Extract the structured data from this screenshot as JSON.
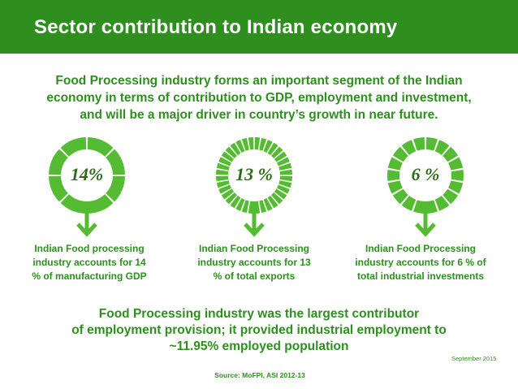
{
  "header": {
    "title": "Sector contribution to Indian economy"
  },
  "intro": {
    "lines": [
      "Food Processing industry forms an important segment of the Indian",
      "economy in terms of contribution to GDP, employment and investment,",
      "and will be a major driver in country’s growth in near future."
    ]
  },
  "stats": [
    {
      "value": "14%",
      "ring_segments": 8,
      "caption_lines": [
        "Indian Food processing",
        "industry accounts for 14",
        "% of manufacturing GDP"
      ]
    },
    {
      "value": "13 %",
      "ring_segments": 36,
      "caption_lines": [
        "Indian Food Processing",
        "industry accounts for 13",
        "% of total exports"
      ]
    },
    {
      "value": "6 %",
      "ring_segments": 18,
      "caption_lines": [
        "Indian Food Processing",
        "industry accounts for 6 % of",
        "total industrial investments"
      ]
    }
  ],
  "summary": {
    "lines": [
      "Food Processing industry was the largest contributor",
      "of employment provision; it provided industrial employment to",
      "~11.95% employed population"
    ]
  },
  "date_note": "September 2015",
  "source": "Source: MoFPI, ASI 2012-13",
  "colors": {
    "header_bg": "#2e8f1f",
    "text_green": "#2e8f1f",
    "ring_green": "#55bb33",
    "value_dark": "#2d6a1a"
  }
}
